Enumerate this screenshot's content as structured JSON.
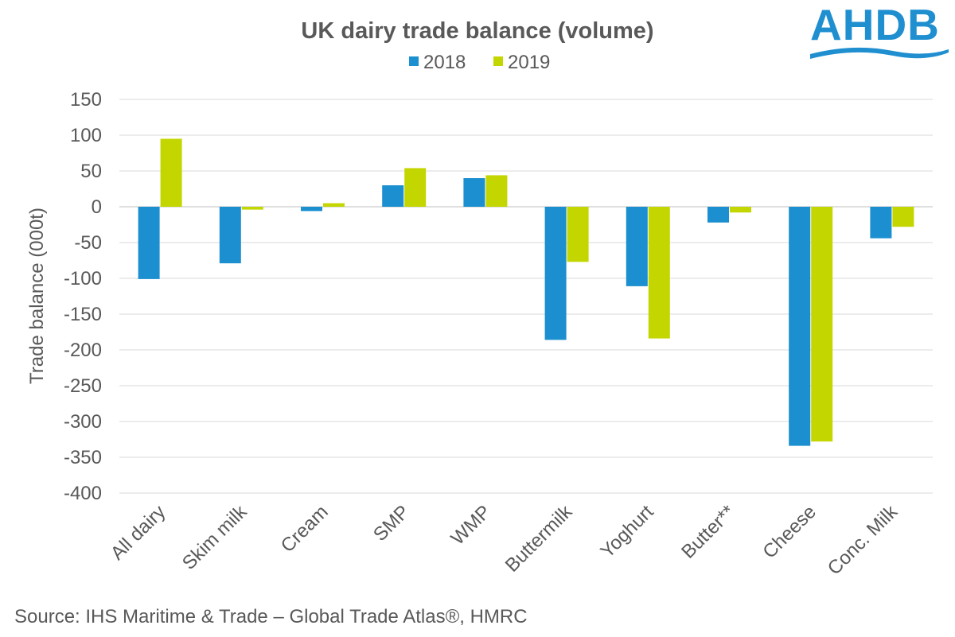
{
  "logo": {
    "text": "AHDB",
    "color": "#1f8fd0"
  },
  "source": "Source: IHS Maritime & Trade – Global Trade Atlas®, HMRC",
  "chart_data": {
    "type": "bar",
    "title": "UK dairy trade balance (volume)",
    "ylabel": "Trade balance (000t)",
    "xlabel": "",
    "ylim": [
      -400,
      150
    ],
    "yticks": [
      150,
      100,
      50,
      0,
      -50,
      -100,
      -150,
      -200,
      -250,
      -300,
      -350,
      -400
    ],
    "grid": true,
    "legend_position": "top-center",
    "categories": [
      "All dairy",
      "Skim milk",
      "Cream",
      "SMP",
      "WMP",
      "Buttermilk",
      "Yoghurt",
      "Butter**",
      "Cheese",
      "Conc. Milk"
    ],
    "series": [
      {
        "name": "2018",
        "color": "#1b8fcf",
        "values": [
          -101,
          -79,
          -6,
          30,
          40,
          -186,
          -111,
          -22,
          -334,
          -44
        ]
      },
      {
        "name": "2019",
        "color": "#c4d600",
        "values": [
          95,
          -4,
          5,
          54,
          44,
          -77,
          -184,
          -8,
          -328,
          -28
        ]
      }
    ]
  }
}
